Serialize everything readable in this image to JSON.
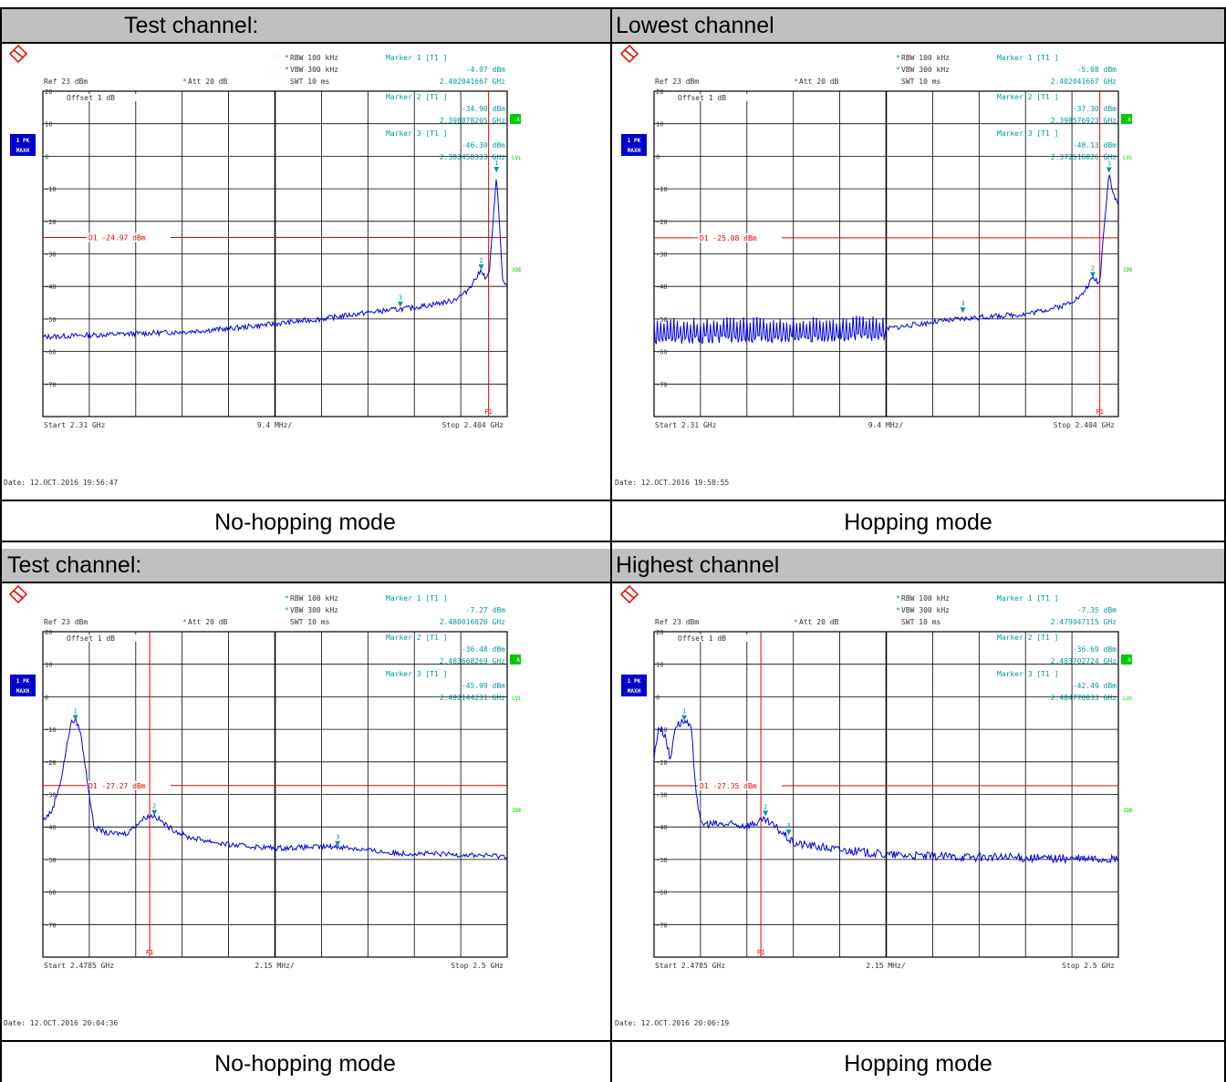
{
  "table": {
    "rows": [
      {
        "header_left": "Test channel:",
        "header_right": "Lowest channel",
        "caption_left": "No-hopping mode",
        "caption_right": "Hopping mode"
      },
      {
        "header_left": "Test channel:",
        "header_right": "Highest channel",
        "caption_left": "No-hopping mode",
        "caption_right": "Hopping mode"
      }
    ]
  },
  "common": {
    "ref": "Ref   23 dBm",
    "att": "Att   20 dB",
    "rbw": "RBW  100 kHz",
    "vbw": "VBW  300 kHz",
    "swt": "SWT  10 ms",
    "offset": "Offset   1 dB",
    "trace_label": [
      "1 PK",
      "MAXH"
    ],
    "side_labels": [
      "A",
      "LVL",
      "3DB"
    ],
    "colors": {
      "trace": "#0000e6",
      "limit": "#e60000",
      "marker": "#009a9a",
      "grid": "#000000",
      "badge": "#00cc00",
      "trace_badge": "#0000cc",
      "header_bg": "#c0c0c0"
    }
  },
  "chart_data": [
    {
      "type": "line",
      "title": "Lowest channel - No-hopping mode",
      "xlabel": "",
      "ylabel": "",
      "ylim": [
        -80,
        20
      ],
      "y_ticks": [
        20,
        10,
        0,
        -10,
        -20,
        -30,
        -40,
        -50,
        -60,
        -70
      ],
      "start": "Start  2.31 GHz",
      "span_per_div": "9.4 MHz/",
      "stop": "Stop  2.404 GHz",
      "date": "Date: 12.OCT.2016  19:56:47",
      "d1": {
        "label": "D1  -24.97 dBm",
        "value": -24.97
      },
      "f1": {
        "label": "F1",
        "xfrac": 0.96
      },
      "markers_text": [
        [
          "Marker 1 [T1 ]",
          "-4.97 dBm",
          "2.402041667 GHz"
        ],
        [
          "Marker 2 [T1 ]",
          "-34.90 dBm",
          "2.398878205 GHz"
        ],
        [
          "Marker 3 [T1 ]",
          "-46.30 dBm",
          "2.382458333 GHz"
        ]
      ],
      "markers": [
        {
          "id": "1",
          "xfrac": 0.977,
          "y": -4.97
        },
        {
          "id": "2",
          "xfrac": 0.944,
          "y": -34.9
        },
        {
          "id": "3",
          "xfrac": 0.77,
          "y": -46.3
        }
      ],
      "trace": {
        "points": [
          [
            0,
            -55.5
          ],
          [
            0.1,
            -55
          ],
          [
            0.2,
            -54.5
          ],
          [
            0.3,
            -54
          ],
          [
            0.4,
            -53
          ],
          [
            0.5,
            -51.5
          ],
          [
            0.6,
            -50
          ],
          [
            0.7,
            -48
          ],
          [
            0.8,
            -46.5
          ],
          [
            0.88,
            -44.5
          ],
          [
            0.91,
            -42
          ],
          [
            0.93,
            -38
          ],
          [
            0.945,
            -34.9
          ],
          [
            0.955,
            -38
          ],
          [
            0.962,
            -35
          ],
          [
            0.97,
            -20
          ],
          [
            0.977,
            -4.97
          ],
          [
            0.983,
            -20
          ],
          [
            0.99,
            -38
          ],
          [
            1,
            -40
          ]
        ],
        "noise": 0.8,
        "hop": false
      }
    },
    {
      "type": "line",
      "title": "Lowest channel - Hopping mode",
      "xlabel": "",
      "ylabel": "",
      "ylim": [
        -80,
        20
      ],
      "y_ticks": [
        20,
        10,
        0,
        -10,
        -20,
        -30,
        -40,
        -50,
        -60,
        -70
      ],
      "start": "Start  2.31 GHz",
      "span_per_div": "9.4 MHz/",
      "stop": "Stop  2.404 GHz",
      "date": "Date: 12.OCT.2016  19:58:55",
      "d1": {
        "label": "D1  -25.08 dBm",
        "value": -25.08
      },
      "f1": {
        "label": "F1",
        "xfrac": 0.96
      },
      "markers_text": [
        [
          "Marker 1 [T1 ]",
          "-5.08 dBm",
          "2.402041667 GHz"
        ],
        [
          "Marker 2 [T1 ]",
          "-37.30 dBm",
          "2.398576923 GHz"
        ],
        [
          "Marker 3 [T1 ]",
          "-48.13 dBm",
          "2.372516026 GHz"
        ]
      ],
      "markers": [
        {
          "id": "1",
          "xfrac": 0.98,
          "y": -5.08
        },
        {
          "id": "2",
          "xfrac": 0.945,
          "y": -37.3
        },
        {
          "id": "3",
          "xfrac": 0.665,
          "y": -48.13
        }
      ],
      "trace": {
        "points": [
          [
            0,
            -54
          ],
          [
            0.5,
            -53
          ],
          [
            0.6,
            -51
          ],
          [
            0.7,
            -49.5
          ],
          [
            0.8,
            -48.5
          ],
          [
            0.88,
            -46
          ],
          [
            0.92,
            -43
          ],
          [
            0.945,
            -37.3
          ],
          [
            0.96,
            -39
          ],
          [
            0.97,
            -20
          ],
          [
            0.98,
            -5.08
          ],
          [
            0.99,
            -12
          ],
          [
            1,
            -15
          ]
        ],
        "noise": 0.8,
        "hop": true,
        "hop_end": 0.5
      }
    },
    {
      "type": "line",
      "title": "Highest channel - No-hopping mode",
      "xlabel": "",
      "ylabel": "",
      "ylim": [
        -80,
        20
      ],
      "y_ticks": [
        20,
        10,
        0,
        -10,
        -20,
        -30,
        -40,
        -50,
        -60,
        -70
      ],
      "start": "Start  2.4785 GHz",
      "span_per_div": "2.15 MHz/",
      "stop": "Stop  2.5 GHz",
      "date": "Date: 12.OCT.2016  20:04:36",
      "d1": {
        "label": "D1  -27.27 dBm",
        "value": -27.27
      },
      "f1": {
        "label": "F1",
        "xfrac": 0.23
      },
      "markers_text": [
        [
          "Marker 1 [T1 ]",
          "-7.27 dBm",
          "2.480016026 GHz"
        ],
        [
          "Marker 2 [T1 ]",
          "-36.48 dBm",
          "2.483668269 GHz"
        ],
        [
          "Marker 3 [T1 ]",
          "-45.99 dBm",
          "2.492144231 GHz"
        ]
      ],
      "markers": [
        {
          "id": "1",
          "xfrac": 0.07,
          "y": -7.27
        },
        {
          "id": "2",
          "xfrac": 0.24,
          "y": -36.48
        },
        {
          "id": "3",
          "xfrac": 0.635,
          "y": -45.99
        }
      ],
      "trace": {
        "points": [
          [
            0,
            -38
          ],
          [
            0.02,
            -35
          ],
          [
            0.04,
            -25
          ],
          [
            0.06,
            -8
          ],
          [
            0.07,
            -7.27
          ],
          [
            0.08,
            -10
          ],
          [
            0.095,
            -25
          ],
          [
            0.11,
            -40
          ],
          [
            0.14,
            -42
          ],
          [
            0.18,
            -42
          ],
          [
            0.22,
            -37
          ],
          [
            0.24,
            -36.48
          ],
          [
            0.27,
            -40
          ],
          [
            0.31,
            -43
          ],
          [
            0.4,
            -45.5
          ],
          [
            0.5,
            -46.5
          ],
          [
            0.635,
            -46
          ],
          [
            0.75,
            -48
          ],
          [
            0.9,
            -48.5
          ],
          [
            1,
            -49
          ]
        ],
        "noise": 0.8,
        "hop": false
      }
    },
    {
      "type": "line",
      "title": "Highest channel - Hopping mode",
      "xlabel": "",
      "ylabel": "",
      "ylim": [
        -80,
        20
      ],
      "y_ticks": [
        20,
        10,
        0,
        -10,
        -20,
        -30,
        -40,
        -50,
        -60,
        -70
      ],
      "start": "Start  2.4785 GHz",
      "span_per_div": "2.15 MHz/",
      "stop": "Stop  2.5 GHz",
      "date": "Date: 12.OCT.2016  20:06:19",
      "d1": {
        "label": "D1  -27.35 dBm",
        "value": -27.35
      },
      "f1": {
        "label": "F1",
        "xfrac": 0.23
      },
      "markers_text": [
        [
          "Marker 1 [T1 ]",
          "-7.35 dBm",
          "2.479947115 GHz"
        ],
        [
          "Marker 2 [T1 ]",
          "-36.69 dBm",
          "2.483702724 GHz"
        ],
        [
          "Marker 3 [T1 ]",
          "-42.49 dBm",
          "2.484770833 GHz"
        ]
      ],
      "markers": [
        {
          "id": "1",
          "xfrac": 0.065,
          "y": -7.35
        },
        {
          "id": "2",
          "xfrac": 0.24,
          "y": -36.69
        },
        {
          "id": "3",
          "xfrac": 0.29,
          "y": -42.49
        }
      ],
      "trace": {
        "points": [
          [
            0,
            -19
          ],
          [
            0.01,
            -9
          ],
          [
            0.025,
            -12
          ],
          [
            0.035,
            -20
          ],
          [
            0.045,
            -9
          ],
          [
            0.065,
            -7.35
          ],
          [
            0.08,
            -10
          ],
          [
            0.09,
            -28
          ],
          [
            0.1,
            -39
          ],
          [
            0.2,
            -39.5
          ],
          [
            0.24,
            -38
          ],
          [
            0.27,
            -41
          ],
          [
            0.3,
            -45
          ],
          [
            0.4,
            -47
          ],
          [
            0.5,
            -48.5
          ],
          [
            0.6,
            -49
          ],
          [
            0.8,
            -49.5
          ],
          [
            1,
            -50
          ]
        ],
        "noise": 1.3,
        "hop": false
      }
    }
  ]
}
